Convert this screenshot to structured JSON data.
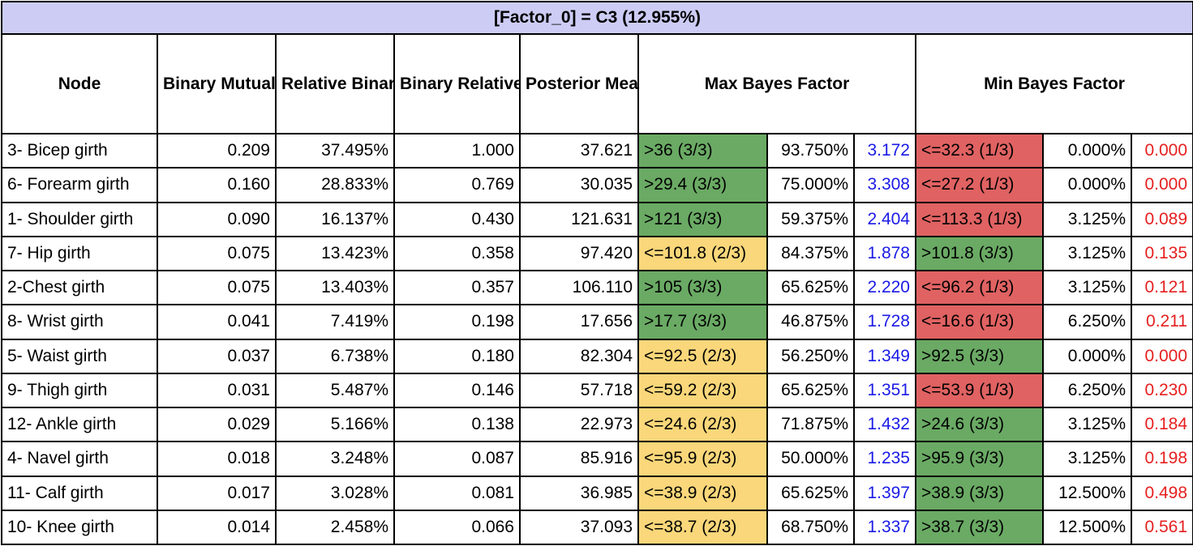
{
  "title": "[Factor_0] = C3 (12.955%)",
  "headers": {
    "node": "Node",
    "bmi": "Binary Mutual Information",
    "rbmi": "Relative Binary Mutual Information",
    "brs": "Binary Relative Significance",
    "pmv": "Posterior Mean Value",
    "max_bf": "Max Bayes Factor",
    "min_bf": "Min Bayes Factor"
  },
  "colors": {
    "green": "#6aaa64",
    "yellow": "#f9d77a",
    "red": "#e06262",
    "header_bg": "#ccccf5",
    "blue_text": "#1a1ae6",
    "red_text": "#e62020"
  },
  "rows": [
    {
      "node": "3- Bicep girth",
      "bmi": "0.209",
      "rbmi": "37.495%",
      "brs": "1.000",
      "pmv": "37.621",
      "max_cond": ">36 (3/3)",
      "max_color": "green",
      "max_pct": "93.750%",
      "max_bf": "3.172",
      "min_cond": "<=32.3 (1/3)",
      "min_color": "red",
      "min_pct": "0.000%",
      "min_bf": "0.000"
    },
    {
      "node": "6- Forearm girth",
      "bmi": "0.160",
      "rbmi": "28.833%",
      "brs": "0.769",
      "pmv": "30.035",
      "max_cond": ">29.4 (3/3)",
      "max_color": "green",
      "max_pct": "75.000%",
      "max_bf": "3.308",
      "min_cond": "<=27.2 (1/3)",
      "min_color": "red",
      "min_pct": "0.000%",
      "min_bf": "0.000"
    },
    {
      "node": "1- Shoulder girth",
      "bmi": "0.090",
      "rbmi": "16.137%",
      "brs": "0.430",
      "pmv": "121.631",
      "max_cond": ">121 (3/3)",
      "max_color": "green",
      "max_pct": "59.375%",
      "max_bf": "2.404",
      "min_cond": "<=113.3 (1/3)",
      "min_color": "red",
      "min_pct": "3.125%",
      "min_bf": "0.089"
    },
    {
      "node": "7- Hip girth",
      "bmi": "0.075",
      "rbmi": "13.423%",
      "brs": "0.358",
      "pmv": "97.420",
      "max_cond": "<=101.8 (2/3)",
      "max_color": "yellow",
      "max_pct": "84.375%",
      "max_bf": "1.878",
      "min_cond": ">101.8 (3/3)",
      "min_color": "green",
      "min_pct": "3.125%",
      "min_bf": "0.135"
    },
    {
      "node": "2-Chest girth",
      "bmi": "0.075",
      "rbmi": "13.403%",
      "brs": "0.357",
      "pmv": "106.110",
      "max_cond": ">105 (3/3)",
      "max_color": "green",
      "max_pct": "65.625%",
      "max_bf": "2.220",
      "min_cond": "<=96.2 (1/3)",
      "min_color": "red",
      "min_pct": "3.125%",
      "min_bf": "0.121"
    },
    {
      "node": "8- Wrist girth",
      "bmi": "0.041",
      "rbmi": "7.419%",
      "brs": "0.198",
      "pmv": "17.656",
      "max_cond": ">17.7 (3/3)",
      "max_color": "green",
      "max_pct": "46.875%",
      "max_bf": "1.728",
      "min_cond": "<=16.6 (1/3)",
      "min_color": "red",
      "min_pct": "6.250%",
      "min_bf": "0.211"
    },
    {
      "node": "5- Waist girth",
      "bmi": "0.037",
      "rbmi": "6.738%",
      "brs": "0.180",
      "pmv": "82.304",
      "max_cond": "<=92.5 (2/3)",
      "max_color": "yellow",
      "max_pct": "56.250%",
      "max_bf": "1.349",
      "min_cond": ">92.5 (3/3)",
      "min_color": "green",
      "min_pct": "0.000%",
      "min_bf": "0.000"
    },
    {
      "node": "9- Thigh girth",
      "bmi": "0.031",
      "rbmi": "5.487%",
      "brs": "0.146",
      "pmv": "57.718",
      "max_cond": "<=59.2 (2/3)",
      "max_color": "yellow",
      "max_pct": "65.625%",
      "max_bf": "1.351",
      "min_cond": "<=53.9 (1/3)",
      "min_color": "red",
      "min_pct": "6.250%",
      "min_bf": "0.230"
    },
    {
      "node": "12- Ankle girth",
      "bmi": "0.029",
      "rbmi": "5.166%",
      "brs": "0.138",
      "pmv": "22.973",
      "max_cond": "<=24.6 (2/3)",
      "max_color": "yellow",
      "max_pct": "71.875%",
      "max_bf": "1.432",
      "min_cond": ">24.6 (3/3)",
      "min_color": "green",
      "min_pct": "3.125%",
      "min_bf": "0.184"
    },
    {
      "node": "4- Navel girth",
      "bmi": "0.018",
      "rbmi": "3.248%",
      "brs": "0.087",
      "pmv": "85.916",
      "max_cond": "<=95.9 (2/3)",
      "max_color": "yellow",
      "max_pct": "50.000%",
      "max_bf": "1.235",
      "min_cond": ">95.9 (3/3)",
      "min_color": "green",
      "min_pct": "3.125%",
      "min_bf": "0.198"
    },
    {
      "node": "11- Calf girth",
      "bmi": "0.017",
      "rbmi": "3.028%",
      "brs": "0.081",
      "pmv": "36.985",
      "max_cond": "<=38.9 (2/3)",
      "max_color": "yellow",
      "max_pct": "65.625%",
      "max_bf": "1.397",
      "min_cond": ">38.9 (3/3)",
      "min_color": "green",
      "min_pct": "12.500%",
      "min_bf": "0.498"
    },
    {
      "node": "10- Knee girth",
      "bmi": "0.014",
      "rbmi": "2.458%",
      "brs": "0.066",
      "pmv": "37.093",
      "max_cond": "<=38.7 (2/3)",
      "max_color": "yellow",
      "max_pct": "68.750%",
      "max_bf": "1.337",
      "min_cond": ">38.7 (3/3)",
      "min_color": "green",
      "min_pct": "12.500%",
      "min_bf": "0.561"
    }
  ]
}
